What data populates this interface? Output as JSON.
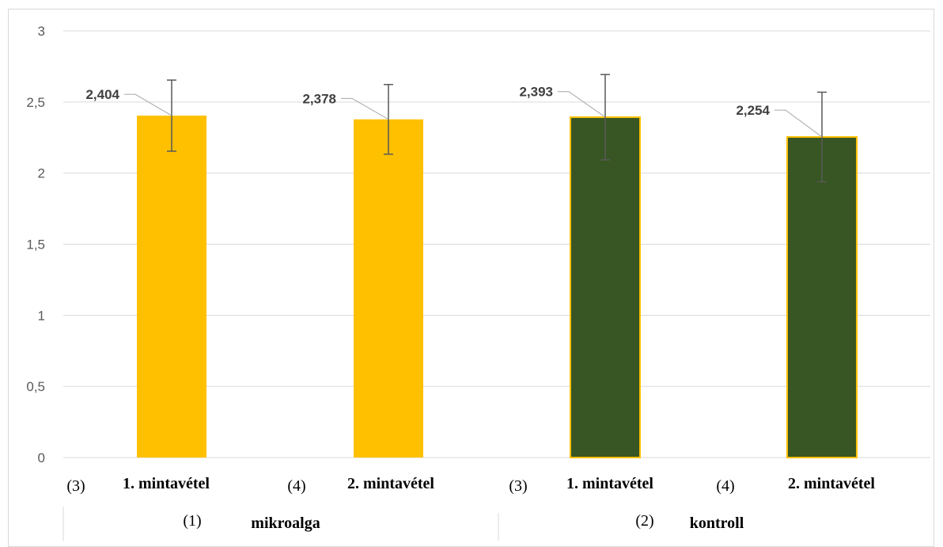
{
  "chart_data": {
    "type": "bar",
    "yticks": [
      "0",
      "0,5",
      "1",
      "1,5",
      "2",
      "2,5",
      "3"
    ],
    "ylim": [
      0,
      3
    ],
    "grid": true,
    "bars": [
      {
        "group": "mikroalga",
        "category": "1. mintavétel",
        "value": 2.404,
        "label": "2,404",
        "error": 0.25,
        "color": "#ffc000",
        "note": "(3)"
      },
      {
        "group": "mikroalga",
        "category": "2. mintavétel",
        "value": 2.378,
        "label": "2,378",
        "error": 0.245,
        "color": "#ffc000",
        "note": "(4)"
      },
      {
        "group": "kontroll",
        "category": "1. mintavétel",
        "value": 2.393,
        "label": "2,393",
        "error": 0.3,
        "color": "#375623",
        "note": "(3)"
      },
      {
        "group": "kontroll",
        "category": "2. mintavétel",
        "value": 2.254,
        "label": "2,254",
        "error": 0.315,
        "color": "#375623",
        "note": "(4)"
      }
    ],
    "groups": [
      {
        "name": "mikroalga",
        "note": "(1)"
      },
      {
        "name": "kontroll",
        "note": "(2)"
      }
    ]
  },
  "colors": {
    "grid": "#d9d9d9",
    "border_kontroll": "#ffc000",
    "error_bar": "#595959"
  }
}
